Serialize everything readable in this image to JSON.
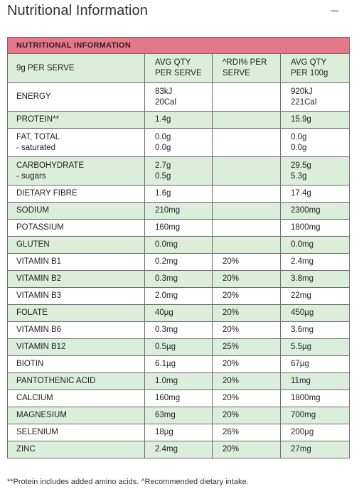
{
  "page": {
    "title": "Nutritional Information",
    "collapse_icon": "minus-icon",
    "collapse_symbol": "–"
  },
  "table": {
    "banner": "NUTRITIONAL INFORMATION",
    "header": {
      "serve": "9g PER SERVE",
      "avg_serve_1": "AVG QTY",
      "avg_serve_2": "PER SERVE",
      "rdi_1": "^RDI% PER",
      "rdi_2": "SERVE",
      "avg_100_1": "AVG QTY",
      "avg_100_2": "PER 100g"
    },
    "energy": {
      "label": "ENERGY",
      "serve_kj": "83kJ",
      "serve_cal": "20Cal",
      "rdi": "",
      "per100_kj": "920kJ",
      "per100_cal": "221Cal"
    },
    "protein": {
      "label": "PROTEIN**",
      "serve": "1.4g",
      "rdi": "",
      "per100": "15.9g"
    },
    "fat": {
      "label": "FAT, TOTAL",
      "sub_label": "- saturated",
      "serve": "0.0g",
      "serve_sub": "0.0g",
      "rdi": "",
      "per100": "0.0g",
      "per100_sub": "0.0g"
    },
    "carb": {
      "label": "CARBOHYDRATE",
      "sub_label": "- sugars",
      "serve": "2.7g",
      "serve_sub": "0.5g",
      "rdi": "",
      "per100": "29.5g",
      "per100_sub": "5.3g"
    },
    "rows": [
      {
        "label": "DIETARY FIBRE",
        "serve": "1.6g",
        "rdi": "",
        "per100": "17.4g"
      },
      {
        "label": "SODIUM",
        "serve": "210mg",
        "rdi": "",
        "per100": "2300mg"
      },
      {
        "label": "POTASSIUM",
        "serve": "160mg",
        "rdi": "",
        "per100": "1800mg"
      },
      {
        "label": "GLUTEN",
        "serve": "0.0mg",
        "rdi": "",
        "per100": "0.0mg"
      },
      {
        "label": "VITAMIN B1",
        "serve": "0.2mg",
        "rdi": "20%",
        "per100": "2.4mg"
      },
      {
        "label": "VITAMIN B2",
        "serve": "0.3mg",
        "rdi": "20%",
        "per100": "3.8mg"
      },
      {
        "label": "VITAMIN B3",
        "serve": "2.0mg",
        "rdi": "20%",
        "per100": "22mg"
      },
      {
        "label": "FOLATE",
        "serve": "40µg",
        "rdi": "20%",
        "per100": "450µg"
      },
      {
        "label": "VITAMIN B6",
        "serve": "0.3mg",
        "rdi": "20%",
        "per100": "3.6mg"
      },
      {
        "label": "VITAMIN B12",
        "serve": "0.5µg",
        "rdi": "25%",
        "per100": "5.5µg"
      },
      {
        "label": "BIOTIN",
        "serve": "6.1µg",
        "rdi": "20%",
        "per100": "67µg"
      },
      {
        "label": "PANTOTHENIC ACID",
        "serve": "1.0mg",
        "rdi": "20%",
        "per100": "11mg"
      },
      {
        "label": "CALCIUM",
        "serve": "160mg",
        "rdi": "20%",
        "per100": "1800mg"
      },
      {
        "label": "MAGNESIUM",
        "serve": "63mg",
        "rdi": "20%",
        "per100": "700mg"
      },
      {
        "label": "SELENIUM",
        "serve": "18µg",
        "rdi": "26%",
        "per100": "200µg"
      },
      {
        "label": "ZINC",
        "serve": "2.4mg",
        "rdi": "20%",
        "per100": "27mg"
      }
    ]
  },
  "footnote": "**Protein includes added amino acids. ^Recommended dietary intake.",
  "colors": {
    "banner": "#e2788a",
    "row_green": "#daeeda",
    "row_white": "#ffffff",
    "border": "#6b6b6b"
  }
}
